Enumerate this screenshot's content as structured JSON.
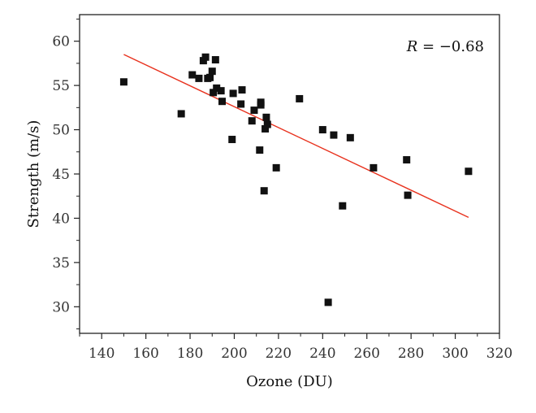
{
  "chart_data": {
    "type": "scatter",
    "xlabel": "Ozone (DU)",
    "ylabel": "Strength (m/s)",
    "xlim": [
      130,
      320
    ],
    "ylim": [
      27,
      63
    ],
    "x_ticks": [
      140,
      160,
      180,
      200,
      220,
      240,
      260,
      280,
      300,
      320
    ],
    "y_ticks": [
      30,
      35,
      40,
      45,
      50,
      55,
      60
    ],
    "grid": false,
    "annotation": {
      "italic": "R",
      "rest": " = −0.68"
    },
    "colors": {
      "points": "#111111",
      "fit_line": "#e8321e",
      "axes": "#222222"
    },
    "points": [
      {
        "x": 150,
        "y": 55.4
      },
      {
        "x": 176,
        "y": 51.8
      },
      {
        "x": 181,
        "y": 56.2
      },
      {
        "x": 184,
        "y": 55.8
      },
      {
        "x": 186,
        "y": 57.8
      },
      {
        "x": 187,
        "y": 58.2
      },
      {
        "x": 188,
        "y": 55.8
      },
      {
        "x": 189,
        "y": 55.9
      },
      {
        "x": 190,
        "y": 56.6
      },
      {
        "x": 190.5,
        "y": 54.2
      },
      {
        "x": 191.5,
        "y": 57.9
      },
      {
        "x": 192,
        "y": 54.7
      },
      {
        "x": 194,
        "y": 54.4
      },
      {
        "x": 194.5,
        "y": 53.2
      },
      {
        "x": 199,
        "y": 48.9
      },
      {
        "x": 199.5,
        "y": 54.1
      },
      {
        "x": 203,
        "y": 52.9
      },
      {
        "x": 203.5,
        "y": 54.5
      },
      {
        "x": 208,
        "y": 51.0
      },
      {
        "x": 209,
        "y": 52.2
      },
      {
        "x": 211.5,
        "y": 47.7
      },
      {
        "x": 212,
        "y": 53.1
      },
      {
        "x": 212,
        "y": 52.8
      },
      {
        "x": 213.5,
        "y": 43.1
      },
      {
        "x": 214,
        "y": 50.1
      },
      {
        "x": 214.5,
        "y": 51.4
      },
      {
        "x": 215,
        "y": 50.6
      },
      {
        "x": 219,
        "y": 45.7
      },
      {
        "x": 229.5,
        "y": 53.5
      },
      {
        "x": 240,
        "y": 50.0
      },
      {
        "x": 242.5,
        "y": 30.5
      },
      {
        "x": 245,
        "y": 49.4
      },
      {
        "x": 249,
        "y": 41.4
      },
      {
        "x": 252.5,
        "y": 49.1
      },
      {
        "x": 263,
        "y": 45.7
      },
      {
        "x": 278,
        "y": 46.6
      },
      {
        "x": 278.5,
        "y": 42.6
      },
      {
        "x": 306,
        "y": 45.3
      }
    ],
    "fit_line": {
      "x": [
        150,
        306
      ],
      "y": [
        58.5,
        40.1
      ]
    }
  }
}
